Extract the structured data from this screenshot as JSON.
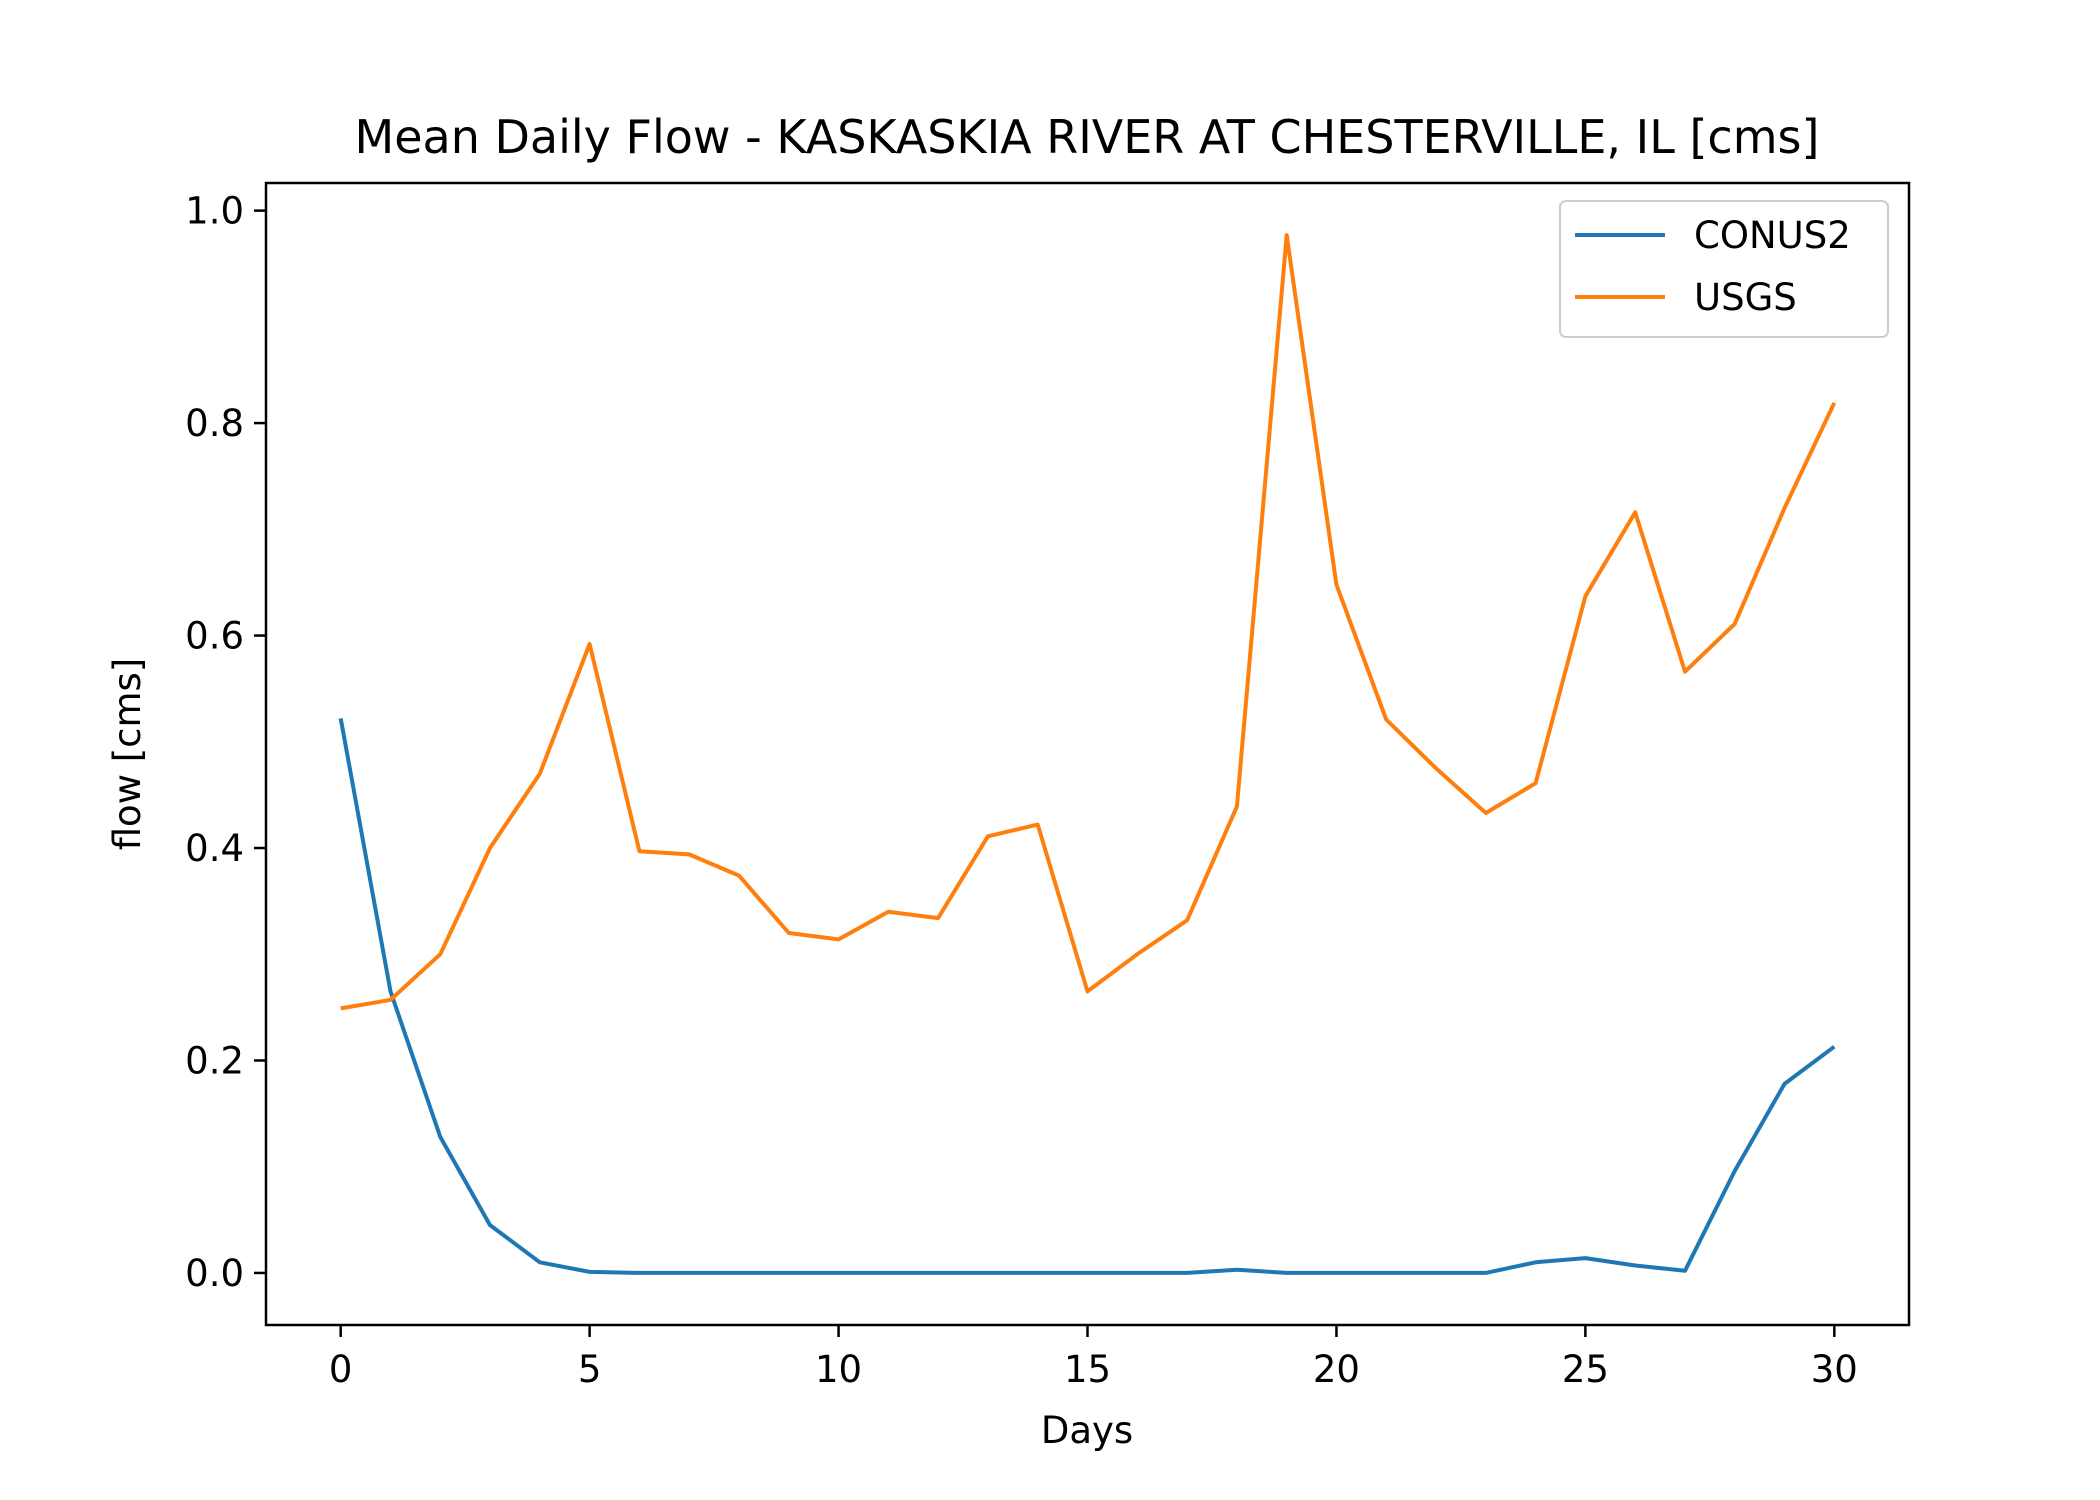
{
  "chart_data": {
    "type": "line",
    "title": "Mean Daily Flow - KASKASKIA RIVER AT CHESTERVILLE, IL [cms]",
    "xlabel": "Days",
    "ylabel": "flow [cms]",
    "xlim": [
      -1.5,
      31.5
    ],
    "ylim": [
      -0.049,
      1.026
    ],
    "xticks": [
      0,
      5,
      10,
      15,
      20,
      25,
      30
    ],
    "xtick_labels": [
      "0",
      "5",
      "10",
      "15",
      "20",
      "25",
      "30"
    ],
    "yticks": [
      0.0,
      0.2,
      0.4,
      0.6,
      0.8,
      1.0
    ],
    "ytick_labels": [
      "0.0",
      "0.2",
      "0.4",
      "0.6",
      "0.8",
      "1.0"
    ],
    "grid": false,
    "legend_position": "top-right",
    "x": [
      0,
      1,
      2,
      3,
      4,
      5,
      6,
      7,
      8,
      9,
      10,
      11,
      12,
      13,
      14,
      15,
      16,
      17,
      18,
      19,
      20,
      21,
      22,
      23,
      24,
      25,
      26,
      27,
      28,
      29,
      30
    ],
    "series": [
      {
        "name": "CONUS2",
        "color": "#1f77b4",
        "values": [
          0.522,
          0.265,
          0.128,
          0.045,
          0.01,
          0.001,
          0.0,
          0.0,
          0.0,
          0.0,
          0.0,
          0.0,
          0.0,
          0.0,
          0.0,
          0.0,
          0.0,
          0.0,
          0.003,
          0.0,
          0.0,
          0.0,
          0.0,
          0.0,
          0.01,
          0.014,
          0.007,
          0.002,
          0.096,
          0.178,
          0.213
        ]
      },
      {
        "name": "USGS",
        "color": "#ff7f0e",
        "values": [
          0.249,
          0.257,
          0.3,
          0.4,
          0.47,
          0.592,
          0.397,
          0.394,
          0.374,
          0.32,
          0.314,
          0.34,
          0.334,
          0.411,
          0.422,
          0.265,
          0.3,
          0.332,
          0.439,
          0.977,
          0.648,
          0.521,
          0.475,
          0.433,
          0.461,
          0.637,
          0.716,
          0.566,
          0.611,
          0.72,
          0.819
        ]
      }
    ]
  }
}
